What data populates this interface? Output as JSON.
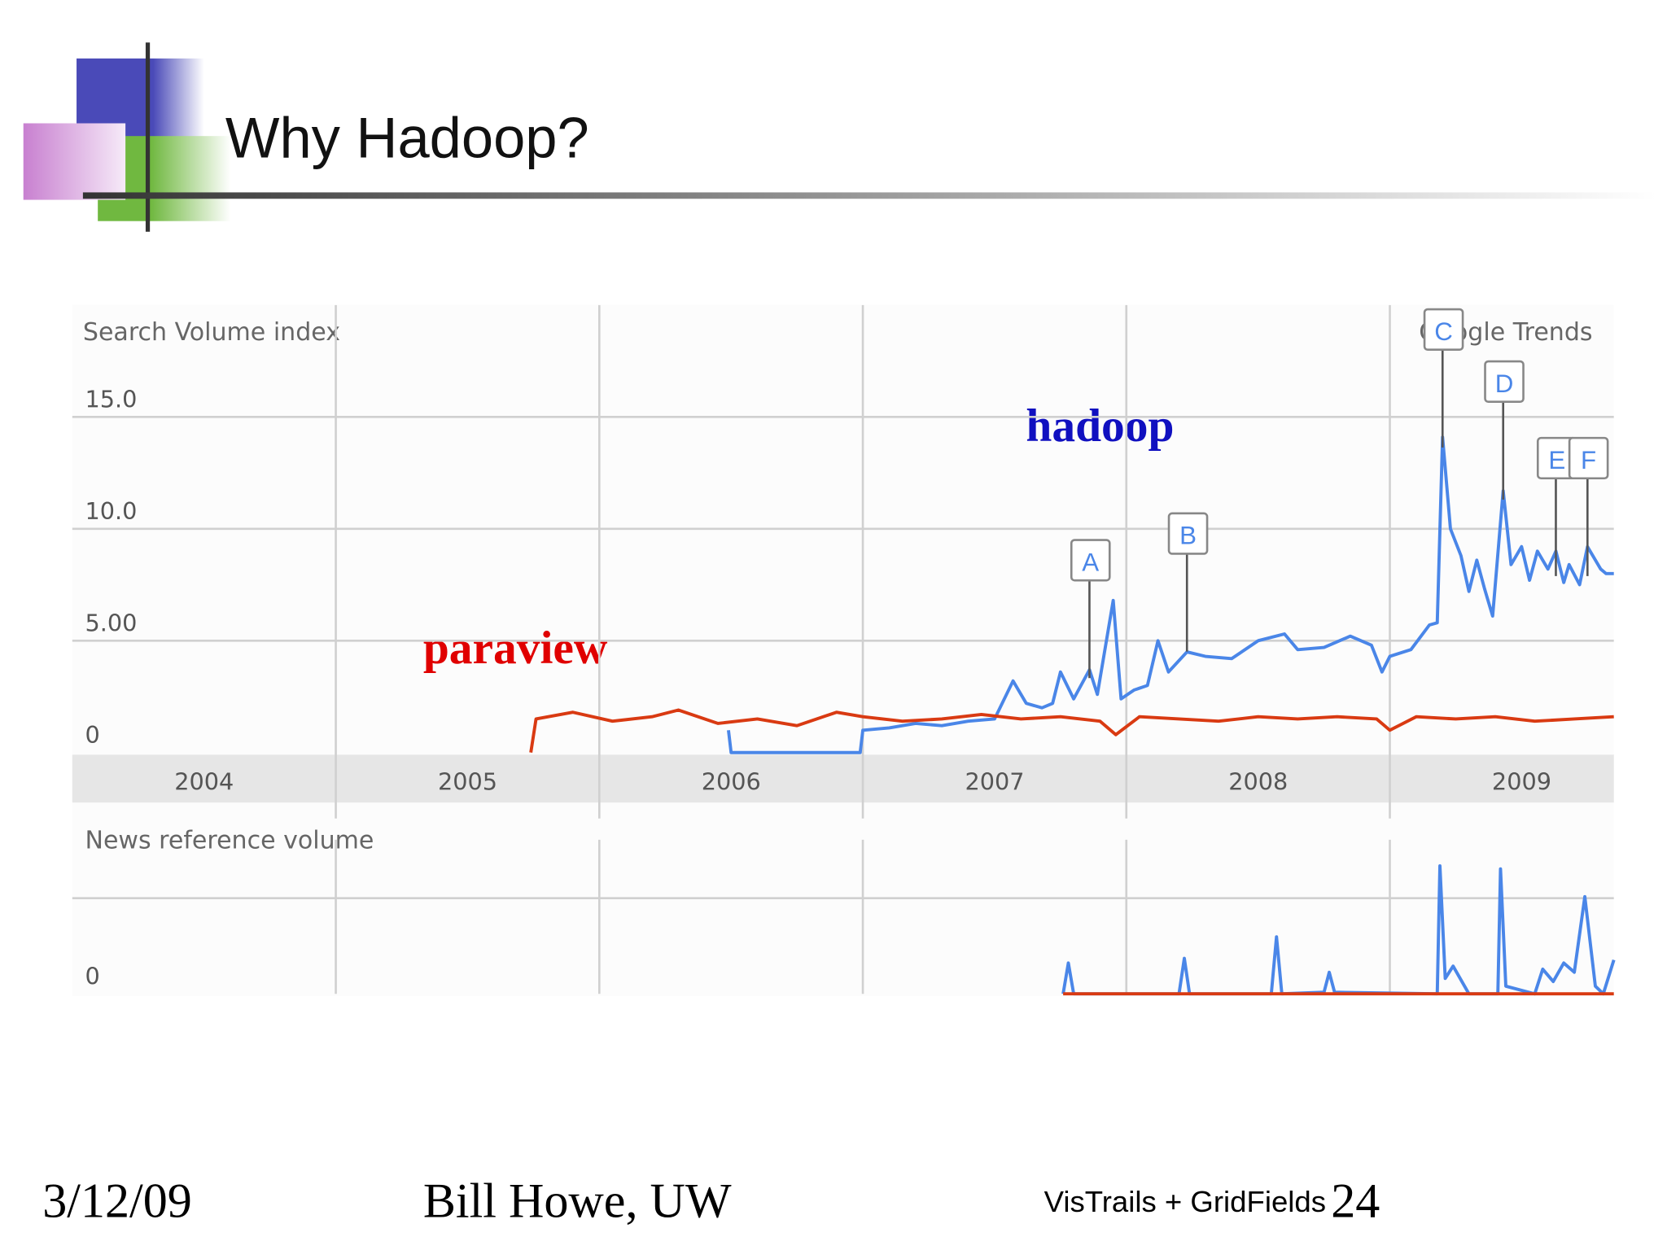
{
  "slide": {
    "title": "Why Hadoop?",
    "footer": {
      "date": "3/12/09",
      "author": "Bill Howe, UW",
      "project": "VisTrails + GridFields",
      "page": "24"
    }
  },
  "chart_data": [
    {
      "type": "line",
      "y_label": "Search Volume index",
      "source": "Google Trends",
      "xlim": [
        2004,
        2009.85
      ],
      "ylim": [
        0,
        20
      ],
      "xticks": [
        {
          "value": 2004,
          "label": "2004"
        },
        {
          "value": 2005,
          "label": "2005"
        },
        {
          "value": 2006,
          "label": "2006"
        },
        {
          "value": 2007,
          "label": "2007"
        },
        {
          "value": 2008,
          "label": "2008"
        },
        {
          "value": 2009,
          "label": "2009"
        }
      ],
      "yticks": [
        0,
        {
          "value": 5,
          "label": "5.00"
        },
        {
          "value": 10,
          "label": "10.0"
        },
        {
          "value": 15,
          "label": "15.0"
        }
      ],
      "grid": true,
      "series": [
        {
          "name": "hadoop",
          "color": "#4a86e8",
          "label_color": "#1010c0",
          "x": [
            2006.49,
            2006.5,
            2006.99,
            2007.0,
            2007.1,
            2007.2,
            2007.3,
            2007.4,
            2007.5,
            2007.57,
            2007.62,
            2007.68,
            2007.72,
            2007.75,
            2007.8,
            2007.86,
            2007.89,
            2007.95,
            2007.98,
            2008.03,
            2008.08,
            2008.12,
            2008.16,
            2008.23,
            2008.3,
            2008.4,
            2008.5,
            2008.6,
            2008.65,
            2008.75,
            2008.85,
            2008.93,
            2008.97,
            2009.0,
            2009.08,
            2009.15,
            2009.18,
            2009.2,
            2009.23,
            2009.27,
            2009.3,
            2009.33,
            2009.36,
            2009.39,
            2009.43,
            2009.46,
            2009.5,
            2009.53,
            2009.56,
            2009.6,
            2009.63,
            2009.66,
            2009.68,
            2009.72,
            2009.75,
            2009.8,
            2009.82,
            2009.85
          ],
          "values": [
            1.0,
            0,
            0,
            1.0,
            1.1,
            1.3,
            1.2,
            1.4,
            1.5,
            3.2,
            2.2,
            2.0,
            2.2,
            3.6,
            2.4,
            3.7,
            2.6,
            6.8,
            2.4,
            2.8,
            3.0,
            5.0,
            3.6,
            4.5,
            4.3,
            4.2,
            5.0,
            5.3,
            4.6,
            4.7,
            5.2,
            4.8,
            3.6,
            4.3,
            4.6,
            5.7,
            5.8,
            14.1,
            10.0,
            8.8,
            7.2,
            8.6,
            7.3,
            6.1,
            11.7,
            8.4,
            9.2,
            7.7,
            9.0,
            8.2,
            9.0,
            7.6,
            8.4,
            7.5,
            9.2,
            8.2,
            8.0,
            8.0
          ]
        },
        {
          "name": "paraview",
          "color": "#d93a12",
          "label_color": "#e00000",
          "x": [
            2005.74,
            2005.76,
            2005.9,
            2006.05,
            2006.2,
            2006.3,
            2006.45,
            2006.6,
            2006.75,
            2006.9,
            2007.0,
            2007.15,
            2007.3,
            2007.45,
            2007.6,
            2007.75,
            2007.9,
            2007.96,
            2008.05,
            2008.2,
            2008.35,
            2008.5,
            2008.65,
            2008.8,
            2008.95,
            2009.0,
            2009.1,
            2009.25,
            2009.4,
            2009.55,
            2009.7,
            2009.85
          ],
          "values": [
            0,
            1.5,
            1.8,
            1.4,
            1.6,
            1.9,
            1.3,
            1.5,
            1.2,
            1.8,
            1.6,
            1.4,
            1.5,
            1.7,
            1.5,
            1.6,
            1.4,
            0.8,
            1.6,
            1.5,
            1.4,
            1.6,
            1.5,
            1.6,
            1.5,
            1.0,
            1.6,
            1.5,
            1.6,
            1.4,
            1.5,
            1.6
          ]
        }
      ],
      "annotations": [
        {
          "label": "A",
          "x": 2007.86
        },
        {
          "label": "B",
          "x": 2008.23
        },
        {
          "label": "C",
          "x": 2009.2
        },
        {
          "label": "D",
          "x": 2009.43
        },
        {
          "label": "E",
          "x": 2009.63
        },
        {
          "label": "F",
          "x": 2009.75
        }
      ]
    },
    {
      "type": "line",
      "y_label": "News reference volume",
      "xlim": [
        2004,
        2009.85
      ],
      "ylim": [
        0,
        1
      ],
      "yticks": [
        0
      ],
      "series": [
        {
          "color": "#4a86e8",
          "x": [
            2007.76,
            2007.78,
            2007.8,
            2008.2,
            2008.22,
            2008.24,
            2008.55,
            2008.57,
            2008.59,
            2008.75,
            2008.77,
            2008.79,
            2009.18,
            2009.19,
            2009.21,
            2009.24,
            2009.3,
            2009.41,
            2009.42,
            2009.44,
            2009.55,
            2009.58,
            2009.62,
            2009.66,
            2009.7,
            2009.74,
            2009.78,
            2009.81,
            2009.85
          ],
          "values": [
            0,
            0.2,
            0,
            0,
            0.23,
            0,
            0,
            0.37,
            0,
            0.01,
            0.14,
            0.01,
            0,
            0.83,
            0.1,
            0.18,
            0,
            0,
            0.81,
            0.05,
            0,
            0.16,
            0.08,
            0.2,
            0.14,
            0.63,
            0.05,
            0,
            0.22
          ]
        },
        {
          "color": "#d93a12",
          "x": [
            2007.76,
            2009.85
          ],
          "values": [
            0,
            0
          ]
        }
      ]
    }
  ]
}
